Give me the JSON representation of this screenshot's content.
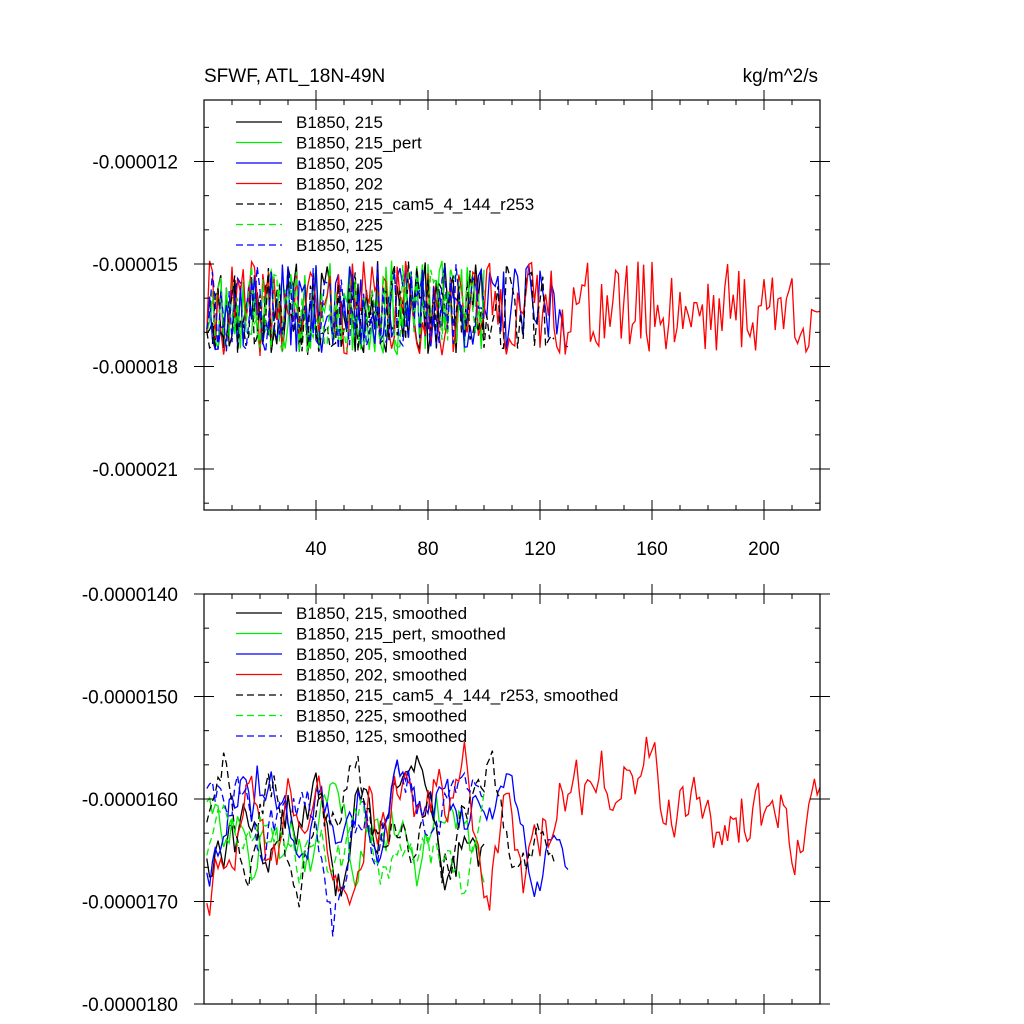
{
  "chart_data": [
    {
      "type": "line",
      "title": "SFWF, ATL_18N-49N",
      "units": "kg/m^2/s",
      "xlim": [
        0,
        220
      ],
      "ylim": [
        -2.22e-05,
        -1.02e-05
      ],
      "xticks": [
        40,
        80,
        120,
        160,
        200
      ],
      "xtick_labels": [
        "40",
        "80",
        "120",
        "160",
        "200"
      ],
      "yticks": [
        -1.2e-05,
        -1.5e-05,
        -1.8e-05,
        -2.1e-05
      ],
      "ytick_labels": [
        "-0.000012",
        "-0.000015",
        "-0.000018",
        "-0.000021"
      ],
      "grid": false,
      "legend_position": "top-left",
      "series": [
        {
          "name": "B1850, 215",
          "color": "#000000",
          "dash": "solid",
          "n": 100,
          "base": -1.63e-05,
          "amp": 1.4e-06,
          "seed": 11
        },
        {
          "name": "B1850, 215_pert",
          "color": "#00ee00",
          "dash": "solid",
          "n": 100,
          "base": -1.63e-05,
          "amp": 1.4e-06,
          "seed": 23
        },
        {
          "name": "B1850, 205",
          "color": "#0000ff",
          "dash": "solid",
          "n": 130,
          "base": -1.63e-05,
          "amp": 1.3e-06,
          "seed": 37
        },
        {
          "name": "B1850, 202",
          "color": "#ff0000",
          "dash": "solid",
          "n": 220,
          "base": -1.63e-05,
          "amp": 1.4e-06,
          "seed": 41
        },
        {
          "name": "B1850, 215_cam5_4_144_r253",
          "color": "#000000",
          "dash": "dashed",
          "n": 125,
          "base": -1.63e-05,
          "amp": 1.4e-06,
          "seed": 53
        },
        {
          "name": "B1850, 225",
          "color": "#00ee00",
          "dash": "dashed",
          "n": 100,
          "base": -1.63e-05,
          "amp": 1.3e-06,
          "seed": 67
        },
        {
          "name": "B1850, 125",
          "color": "#0000ff",
          "dash": "dashed",
          "n": 100,
          "base": -1.63e-05,
          "amp": 1.3e-06,
          "seed": 79
        }
      ]
    },
    {
      "type": "line",
      "title": "",
      "xlim": [
        0,
        220
      ],
      "ylim": [
        -1.8e-05,
        -1.4e-05
      ],
      "xticks": [
        40,
        80,
        120,
        160,
        200
      ],
      "xtick_labels": [],
      "yticks": [
        -1.4e-05,
        -1.5e-05,
        -1.6e-05,
        -1.7e-05,
        -1.8e-05
      ],
      "ytick_labels": [
        "-0.0000140",
        "-0.0000150",
        "-0.0000160",
        "-0.0000170",
        "-0.0000180"
      ],
      "grid": false,
      "legend_position": "top-left",
      "series": [
        {
          "name": "B1850, 215, smoothed",
          "color": "#000000",
          "dash": "solid",
          "n": 100,
          "base": -1.63e-05,
          "amp": 5e-07,
          "seed": 13
        },
        {
          "name": "B1850, 215_pert, smoothed",
          "color": "#00ee00",
          "dash": "solid",
          "n": 100,
          "base": -1.64e-05,
          "amp": 5e-07,
          "seed": 29
        },
        {
          "name": "B1850, 205, smoothed",
          "color": "#0000ff",
          "dash": "solid",
          "n": 130,
          "base": -1.62e-05,
          "amp": 5e-07,
          "seed": 31
        },
        {
          "name": "B1850, 202, smoothed",
          "color": "#ff0000",
          "dash": "solid",
          "n": 220,
          "base": -1.62e-05,
          "amp": 6e-07,
          "seed": 43
        },
        {
          "name": "B1850, 215_cam5_4_144_r253, smoothed",
          "color": "#000000",
          "dash": "dashed",
          "n": 125,
          "base": -1.62e-05,
          "amp": 5e-07,
          "seed": 59
        },
        {
          "name": "B1850, 225, smoothed",
          "color": "#00ee00",
          "dash": "dashed",
          "n": 100,
          "base": -1.64e-05,
          "amp": 4e-07,
          "seed": 71
        },
        {
          "name": "B1850, 125, smoothed",
          "color": "#0000ff",
          "dash": "dashed",
          "n": 100,
          "base": -1.62e-05,
          "amp": 5e-07,
          "seed": 83
        }
      ]
    }
  ]
}
